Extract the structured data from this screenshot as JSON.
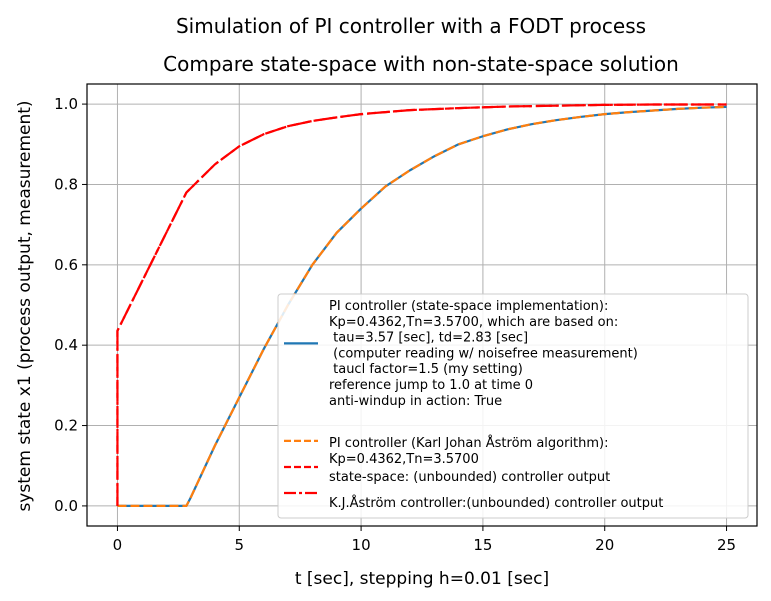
{
  "chart_data": {
    "type": "line",
    "suptitle": "Simulation of PI controller with a FODT process",
    "title": "Compare state-space with non-state-space solution",
    "xlabel": "t [sec], stepping h=0.01 [sec]",
    "ylabel": "system state x1 (process output, measurement)",
    "xlim": [
      -1.25,
      26.25
    ],
    "ylim": [
      -0.05,
      1.05
    ],
    "xticks": [
      0,
      5,
      10,
      15,
      20,
      25
    ],
    "xtick_labels": [
      "0",
      "5",
      "10",
      "15",
      "20",
      "25"
    ],
    "yticks": [
      0.0,
      0.2,
      0.4,
      0.6,
      0.8,
      1.0
    ],
    "ytick_labels": [
      "0.0",
      "0.2",
      "0.4",
      "0.6",
      "0.8",
      "1.0"
    ],
    "grid": true,
    "legend_placement": "lower right",
    "series": [
      {
        "name": "PI controller (state-space implementation):\nKp=0.4362,Tn=3.5700, which are based on:\n  tau=3.57 [sec], td=2.83 [sec]\n  (computer reading w/ noisefree measurement)\n  taucl factor=1.5 (my setting)\nreference jump to 1.0 at time 0\nanti-windup in action: True",
        "color": "#1f77b4",
        "style": "solid",
        "x": [
          0,
          2.83,
          3,
          4,
          5,
          6,
          7,
          8,
          9,
          10,
          11,
          12,
          13,
          14,
          15,
          16,
          17,
          18,
          19,
          20,
          21,
          22,
          23,
          24,
          25
        ],
        "y": [
          0,
          0,
          0.02,
          0.15,
          0.27,
          0.39,
          0.5,
          0.6,
          0.68,
          0.74,
          0.795,
          0.835,
          0.87,
          0.9,
          0.92,
          0.937,
          0.95,
          0.96,
          0.968,
          0.975,
          0.98,
          0.984,
          0.988,
          0.991,
          0.993
        ]
      },
      {
        "name": "PI controller (Karl Johan Åström algorithm):\nKp=0.4362,Tn=3.5700",
        "color": "#ff7f0e",
        "style": "dashed",
        "x": [
          0,
          2.83,
          3,
          4,
          5,
          6,
          7,
          8,
          9,
          10,
          11,
          12,
          13,
          14,
          15,
          16,
          17,
          18,
          19,
          20,
          21,
          22,
          23,
          24,
          25
        ],
        "y": [
          0,
          0,
          0.02,
          0.15,
          0.27,
          0.39,
          0.5,
          0.6,
          0.68,
          0.74,
          0.795,
          0.835,
          0.87,
          0.9,
          0.92,
          0.937,
          0.95,
          0.96,
          0.968,
          0.975,
          0.98,
          0.984,
          0.988,
          0.991,
          0.993
        ]
      },
      {
        "name": "state-space: (unbounded) controller output",
        "color": "#ff0000",
        "style": "dashed",
        "x": [
          0,
          0,
          2.83,
          4,
          5,
          6,
          7,
          8,
          9,
          10,
          12,
          14,
          16,
          18,
          20,
          22,
          25
        ],
        "y": [
          0,
          0.436,
          0.78,
          0.85,
          0.895,
          0.925,
          0.945,
          0.958,
          0.967,
          0.975,
          0.985,
          0.99,
          0.994,
          0.996,
          0.998,
          0.999,
          0.999
        ]
      },
      {
        "name": "K.J.Åström controller:(unbounded) controller output",
        "color": "#ff0000",
        "style": "dashdot",
        "x": [
          0,
          0,
          2.83,
          4,
          5,
          6,
          7,
          8,
          9,
          10,
          12,
          14,
          16,
          18,
          20,
          22,
          25
        ],
        "y": [
          0,
          0.436,
          0.78,
          0.85,
          0.895,
          0.925,
          0.945,
          0.958,
          0.967,
          0.975,
          0.985,
          0.99,
          0.994,
          0.996,
          0.998,
          0.999,
          0.999
        ]
      }
    ]
  }
}
